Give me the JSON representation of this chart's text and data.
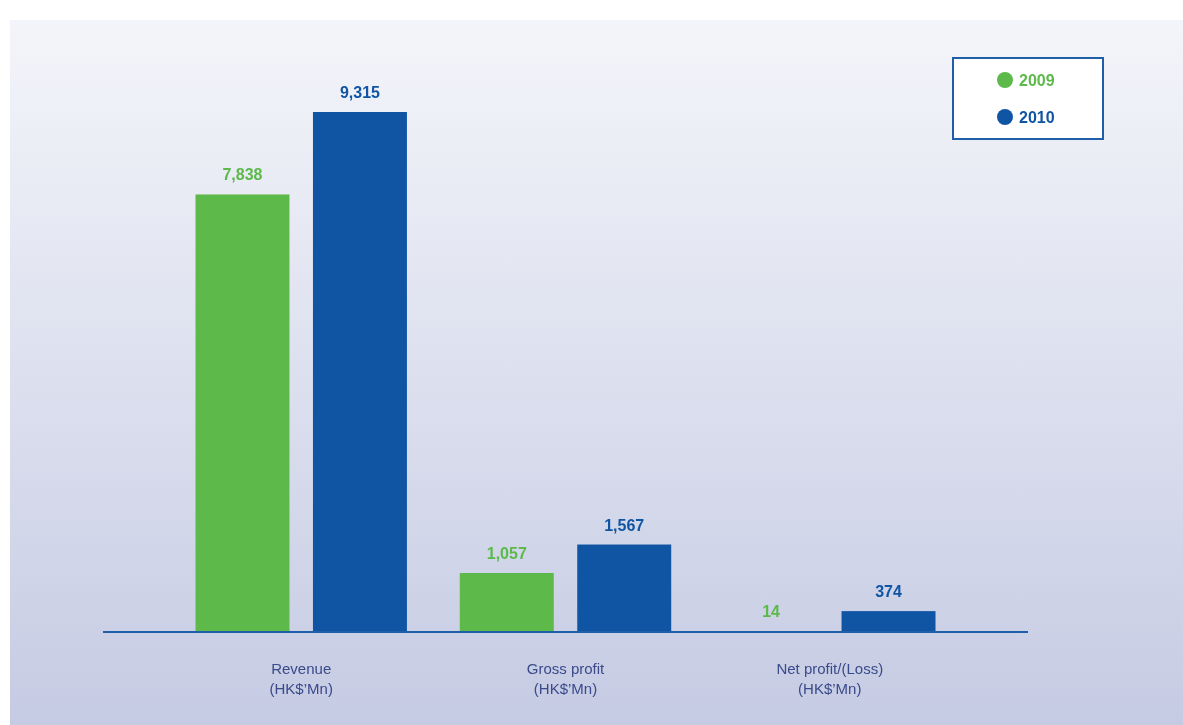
{
  "chart_data": {
    "type": "bar",
    "categories": [
      "Revenue\n(HK$’Mn)",
      "Gross profit\n(HK$’Mn)",
      "Net profit/(Loss)\n(HK$’Mn)"
    ],
    "series": [
      {
        "name": "2009",
        "color": "#5cb94a",
        "values": [
          7838,
          1057,
          14
        ],
        "value_labels": [
          "7,838",
          "1,057",
          "14"
        ]
      },
      {
        "name": "2010",
        "color": "#0f55a3",
        "values": [
          9315,
          1567,
          374
        ],
        "value_labels": [
          "9,315",
          "1,567",
          "374"
        ]
      }
    ],
    "legend": "top right",
    "grid": false
  }
}
